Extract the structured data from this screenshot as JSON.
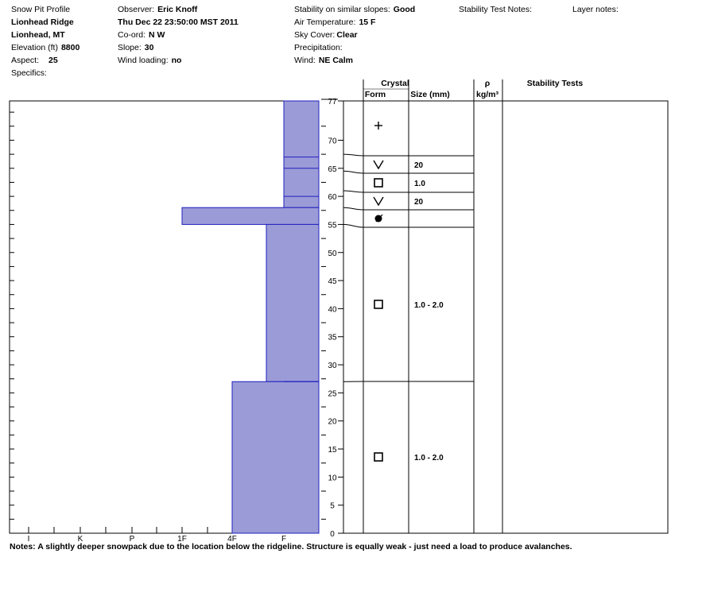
{
  "header": {
    "title": "Snow Pit Profile",
    "location": "Lionhead Ridge",
    "region": "Lionhead, MT",
    "elevation_label": "Elevation (ft)",
    "elevation": "8800",
    "aspect_label": "Aspect:",
    "aspect": "25",
    "specifics_label": "Specifics:",
    "observer_label": "Observer:",
    "observer": "Eric Knoff",
    "datetime": "Thu Dec 22 23:50:00 MST 2011",
    "coord_label": "Co-ord:",
    "coord": "N  W",
    "slope_label": "Slope:",
    "slope": "30",
    "wind_loading_label": "Wind loading:",
    "wind_loading": "no",
    "stability_label": "Stability on similar slopes:",
    "stability": "Good",
    "air_temp_label": "Air Temperature:",
    "air_temp": "15 F",
    "sky_cover_label": "Sky Cover:",
    "sky_cover": "Clear",
    "precip_label": "Precipitation:",
    "wind_label": "Wind:",
    "wind": "NE Calm",
    "stability_test_notes_label": "Stability Test Notes:",
    "layer_notes_label": "Layer notes:"
  },
  "columns": {
    "crystal": "Crystal",
    "form": "Form",
    "size": "Size (mm)",
    "rho": "ρ",
    "rho_unit": "kg/m³",
    "stability_tests": "Stability Tests"
  },
  "notes": "Notes:  A slightly deeper snowpack due to the location below the ridgeline.  Structure is equally weak - just need a load to produce avalanches.",
  "colors": {
    "bar_fill": "#9b9bd7",
    "bar_stroke": "#2020c0"
  },
  "chart_data": {
    "type": "bar",
    "title": "",
    "ylim": [
      0,
      77
    ],
    "y_ticks": [
      0,
      5,
      10,
      15,
      20,
      25,
      30,
      35,
      40,
      45,
      50,
      55,
      60,
      65,
      70,
      77
    ],
    "hardness_scale": [
      "I",
      "K",
      "P",
      "1F",
      "4F",
      "F"
    ],
    "layer_lines": [
      67,
      65,
      60,
      27
    ],
    "hardness_profile": [
      {
        "bottom": 58,
        "top": 77,
        "hardness": "F"
      },
      {
        "bottom": 55,
        "top": 58,
        "hardness": "1F"
      },
      {
        "bottom": 27,
        "top": 55,
        "hardness": "F+"
      },
      {
        "bottom": 0,
        "top": 27,
        "hardness": "4F"
      }
    ],
    "layers": [
      {
        "top": 77,
        "bottom": 67.5,
        "form": "+",
        "size": ""
      },
      {
        "top": 67.5,
        "bottom": 64.5,
        "form": "V",
        "size": "20"
      },
      {
        "top": 64.5,
        "bottom": 61,
        "form": "□",
        "size": "1.0"
      },
      {
        "top": 61,
        "bottom": 58,
        "form": "V",
        "size": "20"
      },
      {
        "top": 58,
        "bottom": 55,
        "form": "●",
        "size": ""
      },
      {
        "top": 55,
        "bottom": 27,
        "form": "□",
        "size": "1.0 - 2.0"
      },
      {
        "top": 27,
        "bottom": 0,
        "form": "□",
        "size": "1.0 - 2.0"
      }
    ]
  }
}
